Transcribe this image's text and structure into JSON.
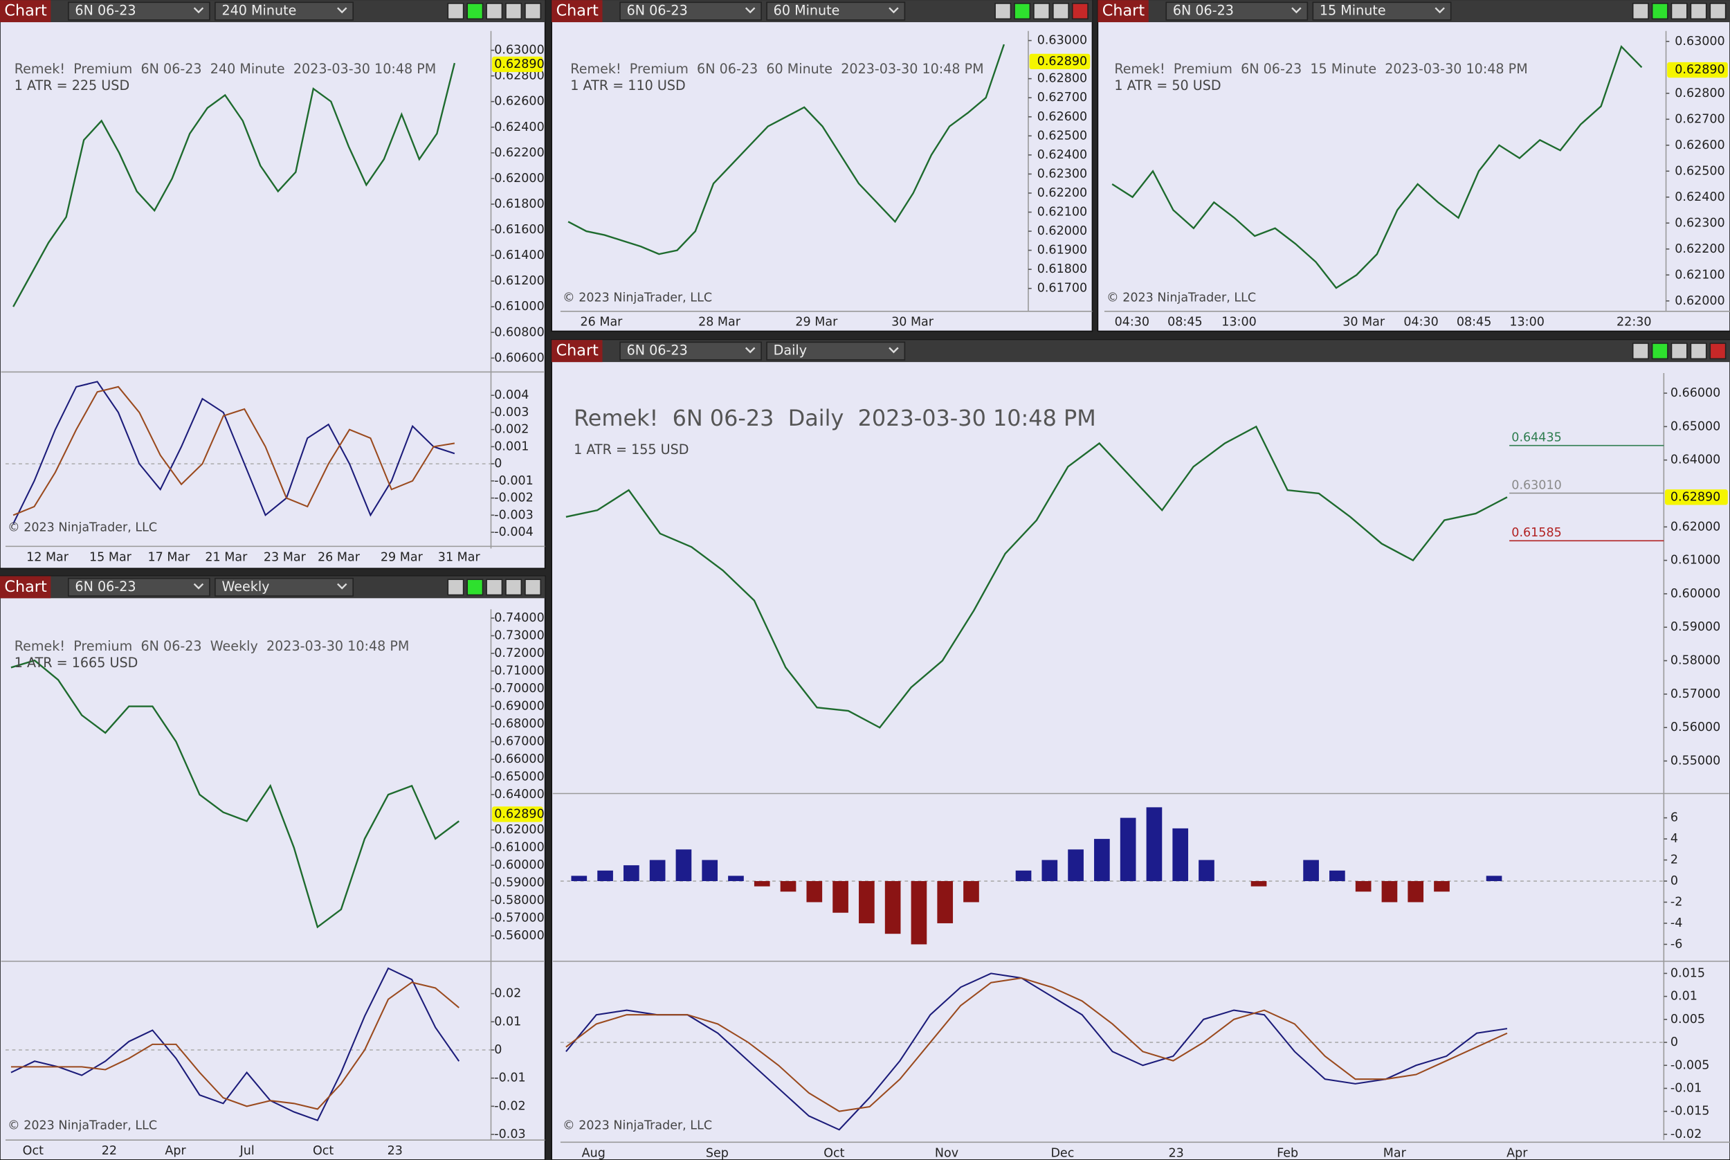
{
  "windows": [
    {
      "tab": "Chart",
      "instrument": "6N 06-23",
      "period": "240 Minute",
      "title": "Remek!  Premium  6N 06-23  240 Minute  2023-03-30 10:48 PM",
      "atr": "1 ATR = 225 USD",
      "copyright": "© 2023 NinjaTrader, LLC",
      "last_price": {
        "value": 0.6289,
        "label": "0.62890"
      },
      "price": {
        "ylim": [
          0.605,
          0.6315
        ],
        "yticks": [
          {
            "value": 0.63,
            "label": "0.63000"
          },
          {
            "value": 0.628,
            "label": "0.62800"
          },
          {
            "value": 0.626,
            "label": "0.62600"
          },
          {
            "value": 0.624,
            "label": "0.62400"
          },
          {
            "value": 0.622,
            "label": "0.62200"
          },
          {
            "value": 0.62,
            "label": "0.62000"
          },
          {
            "value": 0.618,
            "label": "0.61800"
          },
          {
            "value": 0.616,
            "label": "0.61600"
          },
          {
            "value": 0.614,
            "label": "0.61400"
          },
          {
            "value": 0.612,
            "label": "0.61200"
          },
          {
            "value": 0.61,
            "label": "0.61000"
          },
          {
            "value": 0.608,
            "label": "0.60800"
          },
          {
            "value": 0.606,
            "label": "0.60600"
          }
        ],
        "closes": [
          0.61,
          0.6125,
          0.615,
          0.617,
          0.623,
          0.6245,
          0.622,
          0.619,
          0.6175,
          0.62,
          0.6235,
          0.6255,
          0.6265,
          0.6245,
          0.621,
          0.619,
          0.6205,
          0.627,
          0.626,
          0.6225,
          0.6195,
          0.6215,
          0.625,
          0.6215,
          0.6235,
          0.629
        ]
      },
      "oscillator": {
        "ylim": [
          -0.0045,
          0.0053
        ],
        "yticks": [
          0.004,
          0.003,
          0.002,
          0.001,
          0,
          -0.001,
          -0.002,
          -0.003,
          -0.004
        ],
        "series": [
          {
            "color": "#1c1c7a",
            "values": [
              -0.0035,
              -0.001,
              0.002,
              0.0045,
              0.0048,
              0.003,
              0,
              -0.0015,
              0.001,
              0.0038,
              0.003,
              0,
              -0.003,
              -0.002,
              0.0015,
              0.0023,
              0,
              -0.003,
              -0.001,
              0.0022,
              0.001,
              0.0006
            ]
          },
          {
            "color": "#9a4a1e",
            "values": [
              -0.003,
              -0.0025,
              -0.0005,
              0.002,
              0.0042,
              0.0045,
              0.003,
              0.0005,
              -0.0012,
              0,
              0.0028,
              0.0032,
              0.001,
              -0.002,
              -0.0025,
              0,
              0.002,
              0.0015,
              -0.0015,
              -0.001,
              0.001,
              0.0012
            ]
          }
        ]
      },
      "time_labels": [
        "12 Mar",
        "15 Mar",
        "17 Mar",
        "21 Mar",
        "23 Mar",
        "26 Mar",
        "29 Mar",
        "31 Mar"
      ]
    },
    {
      "tab": "Chart",
      "instrument": "6N 06-23",
      "period": "60 Minute",
      "title": "Remek!  Premium  6N 06-23  60 Minute  2023-03-30 10:48 PM",
      "atr": "1 ATR = 110 USD",
      "copyright": "© 2023 NinjaTrader, LLC",
      "last_price": {
        "value": 0.6289,
        "label": "0.62890"
      },
      "price": {
        "ylim": [
          0.6158,
          0.6305
        ],
        "yticks": [
          {
            "value": 0.63,
            "label": "0.63000"
          },
          {
            "value": 0.628,
            "label": "0.62800"
          },
          {
            "value": 0.627,
            "label": "0.62700"
          },
          {
            "value": 0.626,
            "label": "0.62600"
          },
          {
            "value": 0.625,
            "label": "0.62500"
          },
          {
            "value": 0.624,
            "label": "0.62400"
          },
          {
            "value": 0.623,
            "label": "0.62300"
          },
          {
            "value": 0.622,
            "label": "0.62200"
          },
          {
            "value": 0.621,
            "label": "0.62100"
          },
          {
            "value": 0.62,
            "label": "0.62000"
          },
          {
            "value": 0.619,
            "label": "0.61900"
          },
          {
            "value": 0.618,
            "label": "0.61800"
          },
          {
            "value": 0.617,
            "label": "0.61700"
          }
        ],
        "closes": [
          0.6205,
          0.62,
          0.6198,
          0.6195,
          0.6192,
          0.6188,
          0.619,
          0.62,
          0.6225,
          0.6235,
          0.6245,
          0.6255,
          0.626,
          0.6265,
          0.6255,
          0.624,
          0.6225,
          0.6215,
          0.6205,
          0.622,
          0.624,
          0.6255,
          0.6262,
          0.627,
          0.6298
        ]
      },
      "time_labels": [
        "26 Mar",
        "28 Mar",
        "29 Mar",
        "30 Mar"
      ]
    },
    {
      "tab": "Chart",
      "instrument": "6N 06-23",
      "period": "15 Minute",
      "title": "Remek!  Premium  6N 06-23  15 Minute  2023-03-30 10:48 PM",
      "atr": "1 ATR = 50 USD",
      "copyright": "© 2023 NinjaTrader, LLC",
      "last_price": {
        "value": 0.6289,
        "label": "0.62890"
      },
      "price": {
        "ylim": [
          0.6196,
          0.6304
        ],
        "yticks": [
          {
            "value": 0.63,
            "label": "0.63000"
          },
          {
            "value": 0.628,
            "label": "0.62800"
          },
          {
            "value": 0.627,
            "label": "0.62700"
          },
          {
            "value": 0.626,
            "label": "0.62600"
          },
          {
            "value": 0.625,
            "label": "0.62500"
          },
          {
            "value": 0.624,
            "label": "0.62400"
          },
          {
            "value": 0.623,
            "label": "0.62300"
          },
          {
            "value": 0.622,
            "label": "0.62200"
          },
          {
            "value": 0.621,
            "label": "0.62100"
          },
          {
            "value": 0.62,
            "label": "0.62000"
          }
        ],
        "closes": [
          0.6245,
          0.624,
          0.625,
          0.6235,
          0.6228,
          0.6238,
          0.6232,
          0.6225,
          0.6228,
          0.6222,
          0.6215,
          0.6205,
          0.621,
          0.6218,
          0.6235,
          0.6245,
          0.6238,
          0.6232,
          0.625,
          0.626,
          0.6255,
          0.6262,
          0.6258,
          0.6268,
          0.6275,
          0.6298,
          0.629
        ]
      },
      "time_labels": [
        "04:30",
        "08:45",
        "13:00",
        "30 Mar",
        "04:30",
        "08:45",
        "13:00",
        "22:30"
      ]
    },
    {
      "tab": "Chart",
      "instrument": "6N 06-23",
      "period": "Weekly",
      "title": "Remek!  Premium  6N 06-23  Weekly  2023-03-30 10:48 PM",
      "atr": "1 ATR = 1665 USD",
      "copyright": "© 2023 NinjaTrader, LLC",
      "last_price": {
        "value": 0.6289,
        "label": "0.62890"
      },
      "price": {
        "ylim": [
          0.5475,
          0.745
        ],
        "yticks": [
          {
            "value": 0.74,
            "label": "0.74000"
          },
          {
            "value": 0.73,
            "label": "0.73000"
          },
          {
            "value": 0.72,
            "label": "0.72000"
          },
          {
            "value": 0.71,
            "label": "0.71000"
          },
          {
            "value": 0.7,
            "label": "0.70000"
          },
          {
            "value": 0.69,
            "label": "0.69000"
          },
          {
            "value": 0.68,
            "label": "0.68000"
          },
          {
            "value": 0.67,
            "label": "0.67000"
          },
          {
            "value": 0.66,
            "label": "0.66000"
          },
          {
            "value": 0.65,
            "label": "0.65000"
          },
          {
            "value": 0.64,
            "label": "0.64000"
          },
          {
            "value": 0.62,
            "label": "0.62000"
          },
          {
            "value": 0.61,
            "label": "0.61000"
          },
          {
            "value": 0.6,
            "label": "0.60000"
          },
          {
            "value": 0.59,
            "label": "0.59000"
          },
          {
            "value": 0.58,
            "label": "0.58000"
          },
          {
            "value": 0.57,
            "label": "0.57000"
          },
          {
            "value": 0.56,
            "label": "0.56000"
          }
        ],
        "closes": [
          0.712,
          0.716,
          0.705,
          0.685,
          0.675,
          0.69,
          0.69,
          0.67,
          0.64,
          0.63,
          0.625,
          0.645,
          0.61,
          0.565,
          0.575,
          0.615,
          0.64,
          0.645,
          0.615,
          0.625
        ]
      },
      "oscillator": {
        "ylim": [
          -0.0316,
          0.0311
        ],
        "yticks": [
          0.02,
          0.01,
          0,
          -0.01,
          -0.02,
          -0.03
        ],
        "series": [
          {
            "color": "#1c1c7a",
            "values": [
              -0.008,
              -0.004,
              -0.006,
              -0.009,
              -0.004,
              0.003,
              0.007,
              -0.003,
              -0.016,
              -0.019,
              -0.008,
              -0.018,
              -0.022,
              -0.025,
              -0.008,
              0.012,
              0.029,
              0.025,
              0.008,
              -0.004
            ]
          },
          {
            "color": "#9a4a1e",
            "values": [
              -0.006,
              -0.006,
              -0.006,
              -0.006,
              -0.007,
              -0.003,
              0.002,
              0.002,
              -0.008,
              -0.017,
              -0.02,
              -0.018,
              -0.019,
              -0.021,
              -0.012,
              0,
              0.018,
              0.024,
              0.022,
              0.015
            ]
          }
        ]
      },
      "time_labels": [
        "Oct",
        "22",
        "Apr",
        "Jul",
        "Oct",
        "23"
      ]
    },
    {
      "tab": "Chart",
      "instrument": "6N 06-23",
      "period": "Daily",
      "title": "Remek!  6N 06-23  Daily  2023-03-30 10:48 PM",
      "atr": "1 ATR = 155 USD",
      "copyright": "© 2023 NinjaTrader, LLC",
      "last_price": {
        "value": 0.6289,
        "label": "0.62890"
      },
      "price": {
        "ylim": [
          0.5406,
          0.666
        ],
        "yticks": [
          {
            "value": 0.66,
            "label": "0.66000"
          },
          {
            "value": 0.65,
            "label": "0.65000"
          },
          {
            "value": 0.64,
            "label": "0.64000"
          },
          {
            "value": 0.62,
            "label": "0.62000"
          },
          {
            "value": 0.61,
            "label": "0.61000"
          },
          {
            "value": 0.6,
            "label": "0.60000"
          },
          {
            "value": 0.59,
            "label": "0.59000"
          },
          {
            "value": 0.58,
            "label": "0.58000"
          },
          {
            "value": 0.57,
            "label": "0.57000"
          },
          {
            "value": 0.56,
            "label": "0.56000"
          },
          {
            "value": 0.55,
            "label": "0.55000"
          }
        ],
        "closes": [
          0.623,
          0.625,
          0.631,
          0.618,
          0.614,
          0.607,
          0.598,
          0.578,
          0.566,
          0.565,
          0.56,
          0.572,
          0.58,
          0.595,
          0.612,
          0.622,
          0.638,
          0.645,
          0.635,
          0.625,
          0.638,
          0.645,
          0.65,
          0.631,
          0.63,
          0.623,
          0.615,
          0.61,
          0.622,
          0.624,
          0.6289
        ]
      },
      "levels": [
        {
          "value": 0.64435,
          "label": "0.64435",
          "color": "#2e7d4f"
        },
        {
          "value": 0.6301,
          "label": "0.63010",
          "color": "#8a8a8a"
        },
        {
          "value": 0.61585,
          "label": "0.61585",
          "color": "#b22222"
        }
      ],
      "histogram": {
        "ylim": [
          -7.5,
          8.2
        ],
        "yticks": [
          6,
          4,
          2,
          0,
          -2,
          -4,
          -6
        ],
        "values": [
          0.5,
          1,
          1.5,
          2,
          3,
          2,
          0.5,
          -0.5,
          -1,
          -2,
          -3,
          -4,
          -5,
          -6,
          -4,
          -2,
          0,
          1,
          2,
          3,
          4,
          6,
          7,
          5,
          2,
          0,
          -0.5,
          0,
          2,
          1,
          -1,
          -2,
          -2,
          -1,
          0,
          0.5
        ],
        "up_color": "#1c1c8c",
        "down_color": "#8b1414"
      },
      "oscillator": {
        "ylim": [
          -0.021,
          0.0174
        ],
        "yticks": [
          0.015,
          0.01,
          0.005,
          0,
          -0.005,
          -0.01,
          -0.015,
          -0.02
        ],
        "series": [
          {
            "color": "#1c1c7a",
            "values": [
              -0.002,
              0.006,
              0.007,
              0.006,
              0.006,
              0.002,
              -0.004,
              -0.01,
              -0.016,
              -0.019,
              -0.012,
              -0.004,
              0.006,
              0.012,
              0.015,
              0.014,
              0.01,
              0.006,
              -0.002,
              -0.005,
              -0.003,
              0.005,
              0.007,
              0.006,
              -0.002,
              -0.008,
              -0.009,
              -0.008,
              -0.005,
              -0.003,
              0.002,
              0.003
            ]
          },
          {
            "color": "#9a4a1e",
            "values": [
              -0.001,
              0.004,
              0.006,
              0.006,
              0.006,
              0.004,
              0,
              -0.005,
              -0.011,
              -0.015,
              -0.014,
              -0.008,
              0,
              0.008,
              0.013,
              0.014,
              0.012,
              0.009,
              0.004,
              -0.002,
              -0.004,
              0,
              0.005,
              0.007,
              0.004,
              -0.003,
              -0.008,
              -0.008,
              -0.007,
              -0.004,
              -0.001,
              0.002
            ]
          }
        ]
      },
      "time_labels": [
        "Aug",
        "Sep",
        "Oct",
        "Nov",
        "Dec",
        "23",
        "Feb",
        "Mar",
        "Apr"
      ]
    }
  ]
}
